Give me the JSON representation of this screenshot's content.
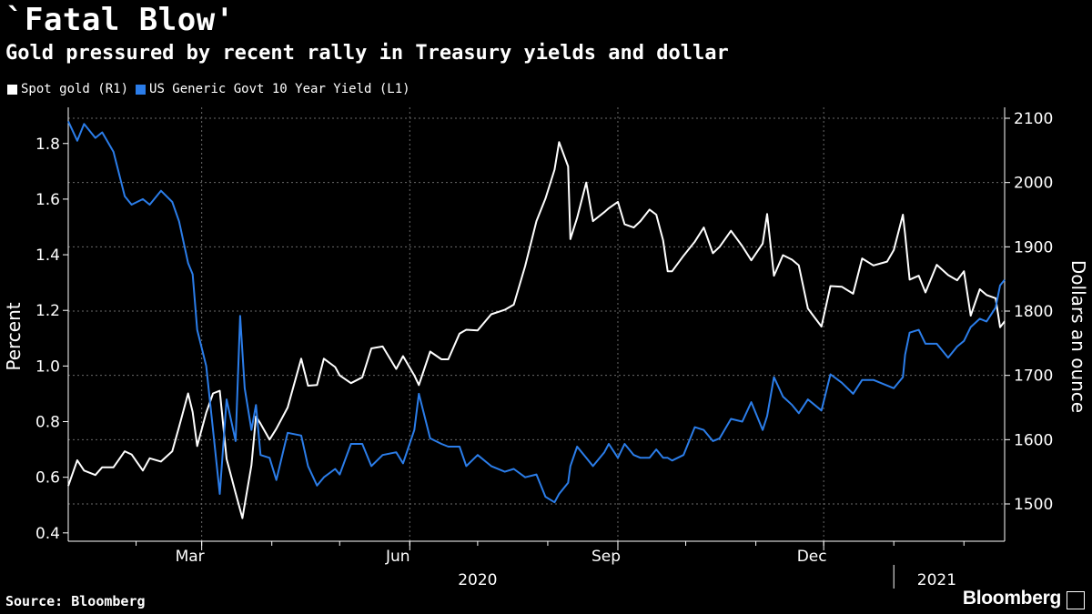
{
  "header": {
    "title": "`Fatal Blow'",
    "subtitle": "Gold pressured by recent rally in Treasury yields and dollar"
  },
  "footer": {
    "source": "Source: Bloomberg",
    "brand": "Bloomberg"
  },
  "chart_data": {
    "type": "line",
    "legend_position": "top-left",
    "grid": true,
    "x_axis": {
      "range": [
        "2020-01-02",
        "2021-02-19"
      ],
      "month_labels": [
        {
          "label": "Mar",
          "date": "2020-03-01"
        },
        {
          "label": "Jun",
          "date": "2020-06-01"
        },
        {
          "label": "Sep",
          "date": "2020-09-01"
        },
        {
          "label": "Dec",
          "date": "2020-12-01"
        }
      ],
      "year_labels": [
        {
          "label": "2020",
          "date": "2020-07-01"
        },
        {
          "label": "2021",
          "date": "2021-01-20"
        }
      ]
    },
    "left_axis": {
      "label": "Percent",
      "range": [
        0.37,
        1.93
      ],
      "ticks": [
        {
          "value": 0.4,
          "label": "0.4"
        },
        {
          "value": 0.6,
          "label": "0.6"
        },
        {
          "value": 0.8,
          "label": "0.8"
        },
        {
          "value": 1.0,
          "label": "1.0"
        },
        {
          "value": 1.2,
          "label": "1.2"
        },
        {
          "value": 1.4,
          "label": "1.4"
        },
        {
          "value": 1.6,
          "label": "1.6"
        },
        {
          "value": 1.8,
          "label": "1.8"
        }
      ]
    },
    "right_axis": {
      "label": "Dollars an ounce",
      "range": [
        1442,
        2117
      ],
      "ticks": [
        {
          "value": 1500,
          "label": "1500"
        },
        {
          "value": 1600,
          "label": "1600"
        },
        {
          "value": 1700,
          "label": "1700"
        },
        {
          "value": 1800,
          "label": "1800"
        },
        {
          "value": 1900,
          "label": "1900"
        },
        {
          "value": 2000,
          "label": "2000"
        },
        {
          "value": 2100,
          "label": "2100"
        }
      ]
    },
    "series": [
      {
        "name": "Spot gold (R1)",
        "axis": "right",
        "color": "#ffffff",
        "points": [
          [
            "2020-01-02",
            1528
          ],
          [
            "2020-01-06",
            1568
          ],
          [
            "2020-01-09",
            1552
          ],
          [
            "2020-01-14",
            1545
          ],
          [
            "2020-01-17",
            1557
          ],
          [
            "2020-01-22",
            1557
          ],
          [
            "2020-01-27",
            1582
          ],
          [
            "2020-01-30",
            1577
          ],
          [
            "2020-02-04",
            1552
          ],
          [
            "2020-02-07",
            1571
          ],
          [
            "2020-02-12",
            1566
          ],
          [
            "2020-02-17",
            1582
          ],
          [
            "2020-02-20",
            1620
          ],
          [
            "2020-02-24",
            1672
          ],
          [
            "2020-02-26",
            1643
          ],
          [
            "2020-02-28",
            1590
          ],
          [
            "2020-03-03",
            1642
          ],
          [
            "2020-03-06",
            1672
          ],
          [
            "2020-03-09",
            1676
          ],
          [
            "2020-03-12",
            1570
          ],
          [
            "2020-03-16",
            1517
          ],
          [
            "2020-03-19",
            1478
          ],
          [
            "2020-03-23",
            1560
          ],
          [
            "2020-03-25",
            1636
          ],
          [
            "2020-03-27",
            1625
          ],
          [
            "2020-03-31",
            1600
          ],
          [
            "2020-04-03",
            1617
          ],
          [
            "2020-04-08",
            1650
          ],
          [
            "2020-04-14",
            1726
          ],
          [
            "2020-04-17",
            1684
          ],
          [
            "2020-04-21",
            1685
          ],
          [
            "2020-04-24",
            1726
          ],
          [
            "2020-04-29",
            1713
          ],
          [
            "2020-05-01",
            1700
          ],
          [
            "2020-05-06",
            1688
          ],
          [
            "2020-05-11",
            1697
          ],
          [
            "2020-05-15",
            1742
          ],
          [
            "2020-05-20",
            1745
          ],
          [
            "2020-05-26",
            1710
          ],
          [
            "2020-05-29",
            1730
          ],
          [
            "2020-06-03",
            1700
          ],
          [
            "2020-06-05",
            1685
          ],
          [
            "2020-06-10",
            1737
          ],
          [
            "2020-06-15",
            1725
          ],
          [
            "2020-06-18",
            1725
          ],
          [
            "2020-06-23",
            1765
          ],
          [
            "2020-06-26",
            1771
          ],
          [
            "2020-07-01",
            1770
          ],
          [
            "2020-07-07",
            1795
          ],
          [
            "2020-07-13",
            1802
          ],
          [
            "2020-07-17",
            1810
          ],
          [
            "2020-07-22",
            1870
          ],
          [
            "2020-07-27",
            1940
          ],
          [
            "2020-07-31",
            1975
          ],
          [
            "2020-08-04",
            2020
          ],
          [
            "2020-08-06",
            2063
          ],
          [
            "2020-08-10",
            2025
          ],
          [
            "2020-08-11",
            1912
          ],
          [
            "2020-08-14",
            1945
          ],
          [
            "2020-08-18",
            2000
          ],
          [
            "2020-08-21",
            1940
          ],
          [
            "2020-08-26",
            1954
          ],
          [
            "2020-08-28",
            1960
          ],
          [
            "2020-09-01",
            1970
          ],
          [
            "2020-09-04",
            1935
          ],
          [
            "2020-09-08",
            1930
          ],
          [
            "2020-09-11",
            1940
          ],
          [
            "2020-09-15",
            1958
          ],
          [
            "2020-09-18",
            1950
          ],
          [
            "2020-09-21",
            1910
          ],
          [
            "2020-09-23",
            1862
          ],
          [
            "2020-09-25",
            1862
          ],
          [
            "2020-09-30",
            1886
          ],
          [
            "2020-10-05",
            1908
          ],
          [
            "2020-10-09",
            1930
          ],
          [
            "2020-10-13",
            1890
          ],
          [
            "2020-10-16",
            1900
          ],
          [
            "2020-10-21",
            1925
          ],
          [
            "2020-10-26",
            1901
          ],
          [
            "2020-10-30",
            1879
          ],
          [
            "2020-11-04",
            1905
          ],
          [
            "2020-11-06",
            1951
          ],
          [
            "2020-11-09",
            1855
          ],
          [
            "2020-11-13",
            1887
          ],
          [
            "2020-11-17",
            1880
          ],
          [
            "2020-11-20",
            1871
          ],
          [
            "2020-11-24",
            1804
          ],
          [
            "2020-11-30",
            1776
          ],
          [
            "2020-12-04",
            1839
          ],
          [
            "2020-12-09",
            1838
          ],
          [
            "2020-12-14",
            1827
          ],
          [
            "2020-12-18",
            1882
          ],
          [
            "2020-12-23",
            1871
          ],
          [
            "2020-12-29",
            1877
          ],
          [
            "2021-01-01",
            1895
          ],
          [
            "2021-01-05",
            1950
          ],
          [
            "2021-01-06",
            1920
          ],
          [
            "2021-01-08",
            1849
          ],
          [
            "2021-01-12",
            1855
          ],
          [
            "2021-01-15",
            1829
          ],
          [
            "2021-01-20",
            1872
          ],
          [
            "2021-01-25",
            1856
          ],
          [
            "2021-01-29",
            1848
          ],
          [
            "2021-02-01",
            1862
          ],
          [
            "2021-02-04",
            1793
          ],
          [
            "2021-02-08",
            1834
          ],
          [
            "2021-02-11",
            1825
          ],
          [
            "2021-02-15",
            1820
          ],
          [
            "2021-02-17",
            1775
          ],
          [
            "2021-02-19",
            1784
          ]
        ]
      },
      {
        "name": "US Generic Govt 10 Year Yield (L1)",
        "axis": "left",
        "color": "#2b7de9",
        "points": [
          [
            "2020-01-02",
            1.88
          ],
          [
            "2020-01-06",
            1.81
          ],
          [
            "2020-01-09",
            1.87
          ],
          [
            "2020-01-14",
            1.82
          ],
          [
            "2020-01-17",
            1.84
          ],
          [
            "2020-01-22",
            1.77
          ],
          [
            "2020-01-27",
            1.61
          ],
          [
            "2020-01-30",
            1.58
          ],
          [
            "2020-02-04",
            1.6
          ],
          [
            "2020-02-07",
            1.58
          ],
          [
            "2020-02-12",
            1.63
          ],
          [
            "2020-02-17",
            1.59
          ],
          [
            "2020-02-20",
            1.52
          ],
          [
            "2020-02-24",
            1.37
          ],
          [
            "2020-02-26",
            1.33
          ],
          [
            "2020-02-28",
            1.13
          ],
          [
            "2020-03-03",
            1.0
          ],
          [
            "2020-03-06",
            0.77
          ],
          [
            "2020-03-09",
            0.54
          ],
          [
            "2020-03-12",
            0.88
          ],
          [
            "2020-03-16",
            0.73
          ],
          [
            "2020-03-18",
            1.18
          ],
          [
            "2020-03-20",
            0.92
          ],
          [
            "2020-03-23",
            0.77
          ],
          [
            "2020-03-25",
            0.86
          ],
          [
            "2020-03-27",
            0.68
          ],
          [
            "2020-03-31",
            0.67
          ],
          [
            "2020-04-03",
            0.59
          ],
          [
            "2020-04-08",
            0.76
          ],
          [
            "2020-04-14",
            0.75
          ],
          [
            "2020-04-17",
            0.64
          ],
          [
            "2020-04-21",
            0.57
          ],
          [
            "2020-04-24",
            0.6
          ],
          [
            "2020-04-29",
            0.63
          ],
          [
            "2020-05-01",
            0.61
          ],
          [
            "2020-05-06",
            0.72
          ],
          [
            "2020-05-11",
            0.72
          ],
          [
            "2020-05-15",
            0.64
          ],
          [
            "2020-05-20",
            0.68
          ],
          [
            "2020-05-26",
            0.69
          ],
          [
            "2020-05-29",
            0.65
          ],
          [
            "2020-06-03",
            0.77
          ],
          [
            "2020-06-05",
            0.9
          ],
          [
            "2020-06-10",
            0.74
          ],
          [
            "2020-06-15",
            0.72
          ],
          [
            "2020-06-18",
            0.71
          ],
          [
            "2020-06-23",
            0.71
          ],
          [
            "2020-06-26",
            0.64
          ],
          [
            "2020-07-01",
            0.68
          ],
          [
            "2020-07-07",
            0.64
          ],
          [
            "2020-07-13",
            0.62
          ],
          [
            "2020-07-17",
            0.63
          ],
          [
            "2020-07-22",
            0.6
          ],
          [
            "2020-07-27",
            0.61
          ],
          [
            "2020-07-31",
            0.53
          ],
          [
            "2020-08-04",
            0.51
          ],
          [
            "2020-08-06",
            0.54
          ],
          [
            "2020-08-10",
            0.58
          ],
          [
            "2020-08-11",
            0.64
          ],
          [
            "2020-08-14",
            0.71
          ],
          [
            "2020-08-18",
            0.67
          ],
          [
            "2020-08-21",
            0.64
          ],
          [
            "2020-08-26",
            0.69
          ],
          [
            "2020-08-28",
            0.72
          ],
          [
            "2020-09-01",
            0.67
          ],
          [
            "2020-09-04",
            0.72
          ],
          [
            "2020-09-08",
            0.68
          ],
          [
            "2020-09-11",
            0.67
          ],
          [
            "2020-09-15",
            0.67
          ],
          [
            "2020-09-18",
            0.7
          ],
          [
            "2020-09-21",
            0.67
          ],
          [
            "2020-09-23",
            0.67
          ],
          [
            "2020-09-25",
            0.66
          ],
          [
            "2020-09-30",
            0.68
          ],
          [
            "2020-10-05",
            0.78
          ],
          [
            "2020-10-09",
            0.77
          ],
          [
            "2020-10-13",
            0.73
          ],
          [
            "2020-10-16",
            0.74
          ],
          [
            "2020-10-21",
            0.81
          ],
          [
            "2020-10-26",
            0.8
          ],
          [
            "2020-10-30",
            0.87
          ],
          [
            "2020-11-04",
            0.77
          ],
          [
            "2020-11-06",
            0.82
          ],
          [
            "2020-11-09",
            0.96
          ],
          [
            "2020-11-13",
            0.89
          ],
          [
            "2020-11-17",
            0.86
          ],
          [
            "2020-11-20",
            0.83
          ],
          [
            "2020-11-24",
            0.88
          ],
          [
            "2020-11-30",
            0.84
          ],
          [
            "2020-12-04",
            0.97
          ],
          [
            "2020-12-09",
            0.94
          ],
          [
            "2020-12-14",
            0.9
          ],
          [
            "2020-12-18",
            0.95
          ],
          [
            "2020-12-23",
            0.95
          ],
          [
            "2020-12-29",
            0.93
          ],
          [
            "2021-01-01",
            0.92
          ],
          [
            "2021-01-05",
            0.96
          ],
          [
            "2021-01-06",
            1.04
          ],
          [
            "2021-01-08",
            1.12
          ],
          [
            "2021-01-12",
            1.13
          ],
          [
            "2021-01-15",
            1.08
          ],
          [
            "2021-01-20",
            1.08
          ],
          [
            "2021-01-25",
            1.03
          ],
          [
            "2021-01-29",
            1.07
          ],
          [
            "2021-02-01",
            1.09
          ],
          [
            "2021-02-04",
            1.14
          ],
          [
            "2021-02-08",
            1.17
          ],
          [
            "2021-02-11",
            1.16
          ],
          [
            "2021-02-15",
            1.21
          ],
          [
            "2021-02-17",
            1.29
          ],
          [
            "2021-02-19",
            1.31
          ]
        ]
      }
    ]
  }
}
